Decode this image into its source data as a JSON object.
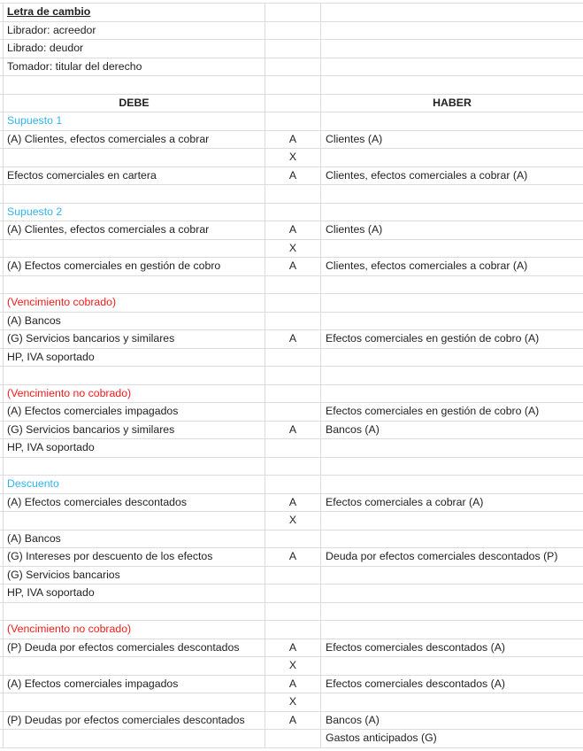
{
  "colors": {
    "section_blue": "#2fb3ec",
    "section_red": "#f21b1b",
    "grid": "#dcdcdc"
  },
  "rows": [
    {
      "a": "Letra de cambio",
      "b": "",
      "c": "",
      "style": "title"
    },
    {
      "a": "Librador: acreedor",
      "b": "",
      "c": ""
    },
    {
      "a": "Librado: deudor",
      "b": "",
      "c": ""
    },
    {
      "a": "Tomador: titular del derecho",
      "b": "",
      "c": ""
    },
    {
      "a": "",
      "b": "",
      "c": ""
    },
    {
      "a": "DEBE",
      "b": "",
      "c": "HABER",
      "style": "head"
    },
    {
      "a": "Supuesto 1",
      "b": "",
      "c": "",
      "style": "blue"
    },
    {
      "a": "(A) Clientes, efectos comerciales a cobrar",
      "b": "A",
      "c": "Clientes (A)"
    },
    {
      "a": "",
      "b": "X",
      "c": ""
    },
    {
      "a": "Efectos comerciales en cartera",
      "b": "A",
      "c": "Clientes, efectos comerciales a cobrar (A)"
    },
    {
      "a": "",
      "b": "",
      "c": ""
    },
    {
      "a": "Supuesto 2",
      "b": "",
      "c": "",
      "style": "blue"
    },
    {
      "a": "(A) Clientes, efectos comerciales a cobrar",
      "b": "A",
      "c": "Clientes (A)"
    },
    {
      "a": "",
      "b": "X",
      "c": ""
    },
    {
      "a": "(A) Efectos comerciales en gestión de cobro",
      "b": "A",
      "c": "Clientes, efectos comerciales a cobrar (A)"
    },
    {
      "a": "",
      "b": "",
      "c": ""
    },
    {
      "a": "(Vencimiento cobrado)",
      "b": "",
      "c": "",
      "style": "red"
    },
    {
      "a": "(A) Bancos",
      "b": "",
      "c": ""
    },
    {
      "a": "(G) Servicios bancarios y similares",
      "b": "A",
      "c": "Efectos comerciales en gestión de cobro (A)"
    },
    {
      "a": "HP, IVA soportado",
      "b": "",
      "c": ""
    },
    {
      "a": "",
      "b": "",
      "c": ""
    },
    {
      "a": "(Vencimiento no cobrado)",
      "b": "",
      "c": "",
      "style": "red"
    },
    {
      "a": "(A) Efectos comerciales impagados",
      "b": "",
      "c": "Efectos comerciales en gestión de cobro (A)"
    },
    {
      "a": "(G) Servicios bancarios y similares",
      "b": "A",
      "c": "Bancos (A)"
    },
    {
      "a": "HP, IVA soportado",
      "b": "",
      "c": ""
    },
    {
      "a": "",
      "b": "",
      "c": ""
    },
    {
      "a": "Descuento",
      "b": "",
      "c": "",
      "style": "blue"
    },
    {
      "a": "(A) Efectos comerciales descontados",
      "b": "A",
      "c": "Efectos comerciales a cobrar (A)"
    },
    {
      "a": "",
      "b": "X",
      "c": ""
    },
    {
      "a": "(A) Bancos",
      "b": "",
      "c": ""
    },
    {
      "a": "(G) Intereses por descuento de los efectos",
      "b": "A",
      "c": "Deuda por efectos comerciales descontados (P)"
    },
    {
      "a": "(G) Servicios bancarios",
      "b": "",
      "c": ""
    },
    {
      "a": "HP, IVA soportado",
      "b": "",
      "c": ""
    },
    {
      "a": "",
      "b": "",
      "c": ""
    },
    {
      "a": "(Vencimiento no cobrado)",
      "b": "",
      "c": "",
      "style": "red"
    },
    {
      "a": "(P) Deuda por efectos comerciales descontados",
      "b": "A",
      "c": "Efectos comerciales descontados (A)"
    },
    {
      "a": "",
      "b": "X",
      "c": ""
    },
    {
      "a": "(A) Efectos comerciales impagados",
      "b": "A",
      "c": "Efectos comerciales descontados (A)"
    },
    {
      "a": "",
      "b": "X",
      "c": ""
    },
    {
      "a": "(P) Deudas por efectos comerciales descontados",
      "b": "A",
      "c": "Bancos (A)"
    },
    {
      "a": "",
      "b": "",
      "c": "Gastos anticipados (G)"
    }
  ]
}
